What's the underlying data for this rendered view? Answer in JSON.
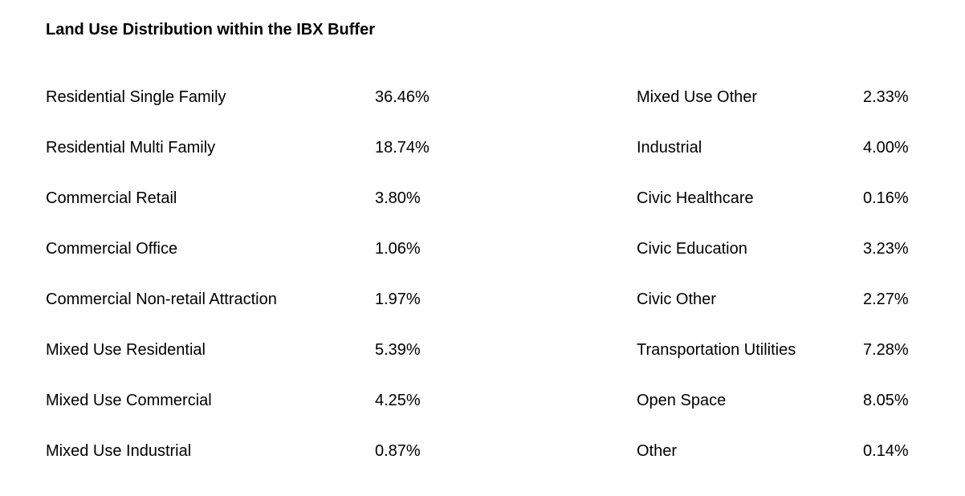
{
  "title": "Land Use Distribution within the IBX Buffer",
  "land_use_table": {
    "left_column": [
      {
        "label": "Residential Single Family",
        "value": "36.46%"
      },
      {
        "label": "Residential Multi Family",
        "value": "18.74%"
      },
      {
        "label": "Commercial Retail",
        "value": "3.80%"
      },
      {
        "label": "Commercial Office",
        "value": "1.06%"
      },
      {
        "label": "Commercial Non-retail Attraction",
        "value": "1.97%"
      },
      {
        "label": "Mixed Use Residential",
        "value": "5.39%"
      },
      {
        "label": "Mixed Use Commercial",
        "value": "4.25%"
      },
      {
        "label": "Mixed Use Industrial",
        "value": "0.87%"
      }
    ],
    "right_column": [
      {
        "label": "Mixed Use Other",
        "value": "2.33%"
      },
      {
        "label": "Industrial",
        "value": "4.00%"
      },
      {
        "label": "Civic Healthcare",
        "value": "0.16%"
      },
      {
        "label": "Civic Education",
        "value": "3.23%"
      },
      {
        "label": "Civic Other",
        "value": "2.27%"
      },
      {
        "label": "Transportation Utilities",
        "value": "7.28%"
      },
      {
        "label": "Open Space",
        "value": "8.05%"
      },
      {
        "label": "Other",
        "value": "0.14%"
      }
    ]
  },
  "chart_data": {
    "type": "table",
    "title": "Land Use Distribution within the IBX Buffer",
    "categories": [
      "Residential Single Family",
      "Residential Multi Family",
      "Commercial Retail",
      "Commercial Office",
      "Commercial Non-retail Attraction",
      "Mixed Use Residential",
      "Mixed Use Commercial",
      "Mixed Use Industrial",
      "Mixed Use Other",
      "Industrial",
      "Civic Healthcare",
      "Civic Education",
      "Civic Other",
      "Transportation Utilities",
      "Open Space",
      "Other"
    ],
    "values_percent": [
      36.46,
      18.74,
      3.8,
      1.06,
      1.97,
      5.39,
      4.25,
      0.87,
      2.33,
      4.0,
      0.16,
      3.23,
      2.27,
      7.28,
      8.05,
      0.14
    ],
    "value_unit": "%",
    "layout": "two-column label/value pairs, values left-aligned in their own columns"
  }
}
